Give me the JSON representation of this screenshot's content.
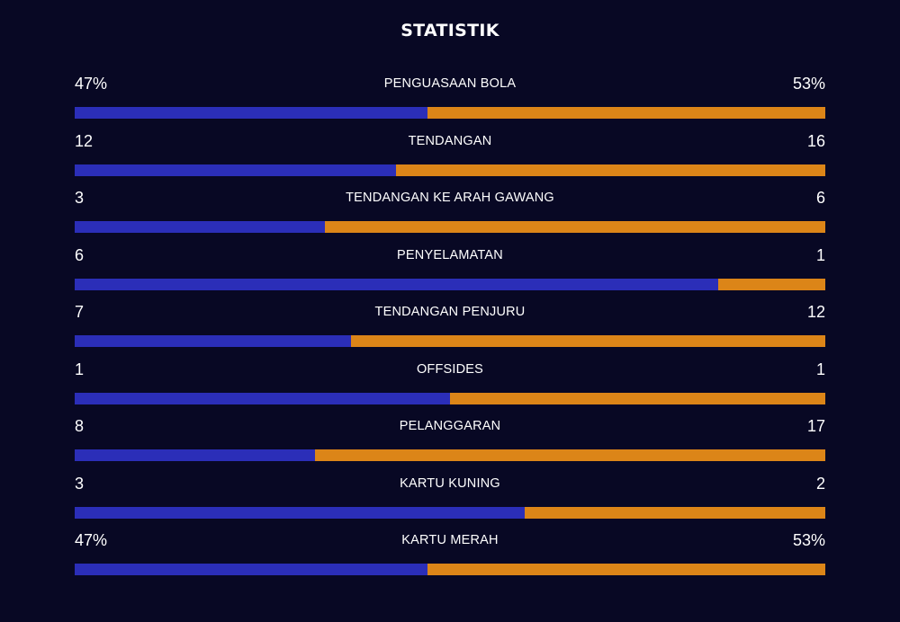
{
  "title": "STATISTIK",
  "colors": {
    "home": "#2b2eb8",
    "away": "#dc8518",
    "background": "#080824"
  },
  "stats": [
    {
      "label": "PENGUASAAN BOLA",
      "home": "47%",
      "away": "53%",
      "home_share": 0.47
    },
    {
      "label": "TENDANGAN",
      "home": "12",
      "away": "16",
      "home_share": 0.4286
    },
    {
      "label": "TENDANGAN KE ARAH GAWANG",
      "home": "3",
      "away": "6",
      "home_share": 0.3333
    },
    {
      "label": "PENYELAMATAN",
      "home": "6",
      "away": "1",
      "home_share": 0.8571
    },
    {
      "label": "TENDANGAN PENJURU",
      "home": "7",
      "away": "12",
      "home_share": 0.3684
    },
    {
      "label": "OFFSIDES",
      "home": "1",
      "away": "1",
      "home_share": 0.5
    },
    {
      "label": "PELANGGARAN",
      "home": "8",
      "away": "17",
      "home_share": 0.32
    },
    {
      "label": "KARTU KUNING",
      "home": "3",
      "away": "2",
      "home_share": 0.6
    },
    {
      "label": "KARTU MERAH",
      "home": "47%",
      "away": "53%",
      "home_share": 0.47
    }
  ]
}
